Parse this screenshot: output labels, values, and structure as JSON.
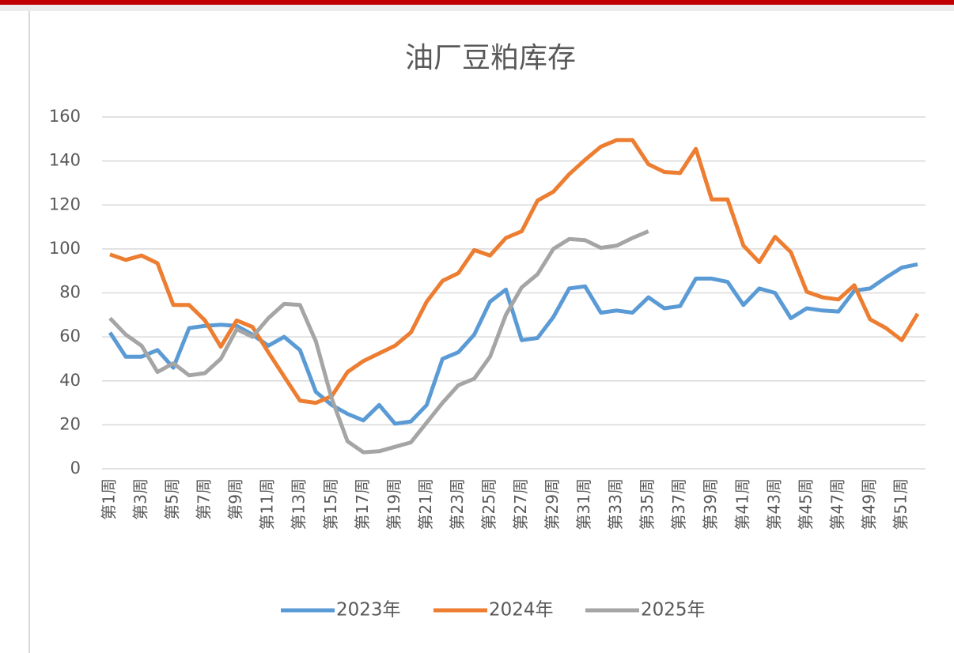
{
  "chart_data": {
    "type": "line",
    "title": "油厂豆粕库存",
    "categories": [
      "第1周",
      null,
      "第3周",
      null,
      "第5周",
      null,
      "第7周",
      null,
      "第9周",
      null,
      "第11周",
      null,
      "第13周",
      null,
      "第15周",
      null,
      "第17周",
      null,
      "第19周",
      null,
      "第21周",
      null,
      "第23周",
      null,
      "第25周",
      null,
      "第27周",
      null,
      "第29周",
      null,
      "第31周",
      null,
      "第33周",
      null,
      "第35周",
      null,
      "第37周",
      null,
      "第39周",
      null,
      "第41周",
      null,
      "第43周",
      null,
      "第45周",
      null,
      "第47周",
      null,
      "第49周",
      null,
      "第51周",
      null
    ],
    "series": [
      {
        "name": "2023年",
        "color": "#5b9bd5",
        "values": [
          62,
          51,
          51,
          54,
          46,
          64,
          65,
          65.5,
          65,
          61,
          56,
          60,
          54,
          35,
          29,
          25,
          22,
          29,
          20.5,
          21.5,
          29,
          50,
          53,
          61,
          76,
          81.5,
          58.5,
          59.5,
          69,
          82,
          83,
          71,
          72,
          71,
          78,
          73,
          74,
          86.5,
          86.5,
          85,
          74.5,
          82,
          80,
          68.5,
          73,
          72,
          71.5,
          81,
          82,
          87,
          91.5,
          93
        ]
      },
      {
        "name": "2024年",
        "color": "#ed7d31",
        "values": [
          97.5,
          95,
          97,
          93.5,
          74.5,
          74.5,
          67.5,
          55.5,
          67.5,
          64.5,
          53,
          42,
          31,
          30,
          33,
          44,
          49,
          52.5,
          56,
          62,
          76,
          85.5,
          89,
          99.5,
          97,
          105,
          108,
          122,
          126,
          134,
          140.5,
          146.5,
          149.5,
          149.5,
          138.5,
          135,
          134.5,
          145.5,
          122.5,
          122.5,
          101.5,
          94,
          105.5,
          98.5,
          80.5,
          78,
          77,
          83.5,
          68,
          64,
          58.5,
          70.5
        ]
      },
      {
        "name": "2025年",
        "color": "#a5a5a5",
        "values": [
          68.5,
          61,
          56,
          44,
          48,
          42.5,
          43.5,
          50,
          63.5,
          60,
          68.5,
          75,
          74.5,
          58,
          32,
          12.5,
          7.5,
          8,
          10,
          12,
          21,
          30,
          38,
          41,
          51,
          70,
          82.5,
          88.5,
          100,
          104.5,
          104,
          100.5,
          101.5,
          105,
          108,
          null,
          null,
          null,
          null,
          null,
          null,
          null,
          null,
          null,
          null,
          null,
          null,
          null,
          null,
          null,
          null,
          null
        ]
      }
    ],
    "ylim": [
      0,
      160
    ],
    "yticks": [
      0,
      20,
      40,
      60,
      80,
      100,
      120,
      140,
      160
    ],
    "grid": true,
    "legend": "bottom"
  }
}
